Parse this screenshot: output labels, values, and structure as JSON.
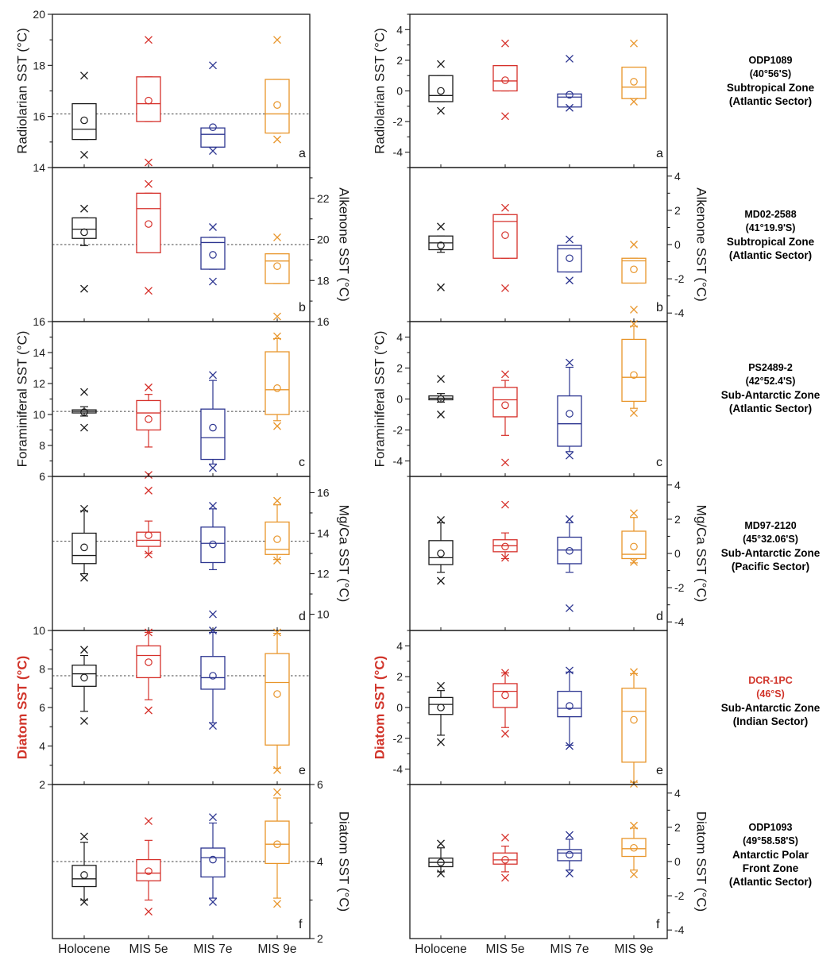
{
  "colors": {
    "axis": "#1a1a1a",
    "holocene": "#1a1a1a",
    "mis5e": "#d6312b",
    "mis7e": "#2c3590",
    "mis9e": "#e8952a",
    "red_label": "#d1342a",
    "ref_line": "#444444"
  },
  "x_categories": [
    "Holocene",
    "MIS 5e",
    "MIS 7e",
    "MIS 9e"
  ],
  "sites": [
    {
      "name": "ODP1089",
      "coord": "(40°56'S)",
      "zone": [
        "Subtropical Zone",
        "(Atlantic Sector)"
      ],
      "highlight": false
    },
    {
      "name": "MD02-2588",
      "coord": "(41°19.9'S)",
      "zone": [
        "Subtropical Zone",
        "(Atlantic Sector)"
      ],
      "highlight": false
    },
    {
      "name": "PS2489-2",
      "coord": "(42°52.4'S)",
      "zone": [
        "Sub-Antarctic Zone",
        "(Atlantic Sector)"
      ],
      "highlight": false
    },
    {
      "name": "MD97-2120",
      "coord": "(45°32.06'S)",
      "zone": [
        "Sub-Antarctic Zone",
        "(Pacific Sector)"
      ],
      "highlight": false
    },
    {
      "name": "DCR-1PC",
      "coord": "(46°S)",
      "zone": [
        "Sub-Antarctic Zone",
        "(Indian Sector)"
      ],
      "highlight": true
    },
    {
      "name": "ODP1093",
      "coord": "(49°58.58'S)",
      "zone": [
        "Antarctic Polar",
        "Front Zone",
        "(Atlantic Sector)"
      ],
      "highlight": false
    }
  ],
  "chart_data": [
    {
      "type": "box",
      "panel": "a",
      "side": "left",
      "ylabel": "Radiolarian SST (°C)",
      "ylabel_red": false,
      "axis": "left",
      "ylim": [
        14,
        20
      ],
      "ticks": [
        14,
        16,
        18,
        20
      ],
      "minor_step": 1,
      "ref_line": 16.1,
      "categories": [
        "Holocene",
        "MIS 5e",
        "MIS 7e",
        "MIS 9e"
      ],
      "boxes": [
        {
          "q1": 15.1,
          "median": 15.5,
          "q3": 16.5,
          "lower_whisker": 15.1,
          "upper_whisker": 16.5,
          "mean": 15.85,
          "min": 14.5,
          "max": 17.6
        },
        {
          "q1": 15.8,
          "median": 16.5,
          "q3": 17.55,
          "lower_whisker": 15.8,
          "upper_whisker": 17.55,
          "mean": 16.62,
          "min": 14.2,
          "max": 19.0
        },
        {
          "q1": 14.8,
          "median": 15.3,
          "q3": 15.55,
          "lower_whisker": 14.8,
          "upper_whisker": 15.55,
          "mean": 15.58,
          "min": 14.65,
          "max": 18.0
        },
        {
          "q1": 15.35,
          "median": 16.1,
          "q3": 17.45,
          "lower_whisker": 15.35,
          "upper_whisker": 17.45,
          "mean": 16.45,
          "min": 15.1,
          "max": 19.0
        }
      ]
    },
    {
      "type": "box",
      "panel": "b",
      "side": "left",
      "ylabel": "Alkenone SST (°C)",
      "ylabel_red": false,
      "axis": "right",
      "ylim": [
        16,
        23.5
      ],
      "ticks": [
        16,
        18,
        20,
        22
      ],
      "minor_step": 1,
      "ref_line": 19.75,
      "categories": [
        "Holocene",
        "MIS 5e",
        "MIS 7e",
        "MIS 9e"
      ],
      "boxes": [
        {
          "q1": 20.05,
          "median": 20.5,
          "q3": 21.05,
          "lower_whisker": 19.7,
          "upper_whisker": 21.05,
          "mean": 20.35,
          "min": 17.6,
          "max": 21.5
        },
        {
          "q1": 19.35,
          "median": 21.5,
          "q3": 22.25,
          "lower_whisker": 19.35,
          "upper_whisker": 22.25,
          "mean": 20.75,
          "min": 17.5,
          "max": 22.7
        },
        {
          "q1": 18.55,
          "median": 19.85,
          "q3": 20.1,
          "lower_whisker": 18.55,
          "upper_whisker": 20.1,
          "mean": 19.25,
          "min": 17.95,
          "max": 20.6
        },
        {
          "q1": 17.85,
          "median": 18.95,
          "q3": 19.3,
          "lower_whisker": 17.85,
          "upper_whisker": 19.3,
          "mean": 18.7,
          "min": 16.25,
          "max": 20.1
        }
      ]
    },
    {
      "type": "box",
      "panel": "c",
      "side": "left",
      "ylabel": "Foraminiferal SST (°C)",
      "ylabel_red": false,
      "axis": "left",
      "ylim": [
        6,
        16
      ],
      "ticks": [
        6,
        8,
        10,
        12,
        14,
        16
      ],
      "minor_step": 1,
      "ref_line": 10.2,
      "categories": [
        "Holocene",
        "MIS 5e",
        "MIS 7e",
        "MIS 9e"
      ],
      "boxes": [
        {
          "q1": 10.1,
          "median": 10.2,
          "q3": 10.3,
          "lower_whisker": 9.9,
          "upper_whisker": 10.5,
          "mean": 10.15,
          "min": 9.15,
          "max": 11.45
        },
        {
          "q1": 9.0,
          "median": 10.1,
          "q3": 10.9,
          "lower_whisker": 7.9,
          "upper_whisker": 11.3,
          "mean": 9.7,
          "min": 6.1,
          "max": 11.75
        },
        {
          "q1": 7.1,
          "median": 8.5,
          "q3": 10.35,
          "lower_whisker": 6.8,
          "upper_whisker": 12.2,
          "mean": 9.15,
          "min": 6.55,
          "max": 12.55
        },
        {
          "q1": 10.0,
          "median": 11.6,
          "q3": 14.05,
          "lower_whisker": 9.6,
          "upper_whisker": 14.9,
          "mean": 11.7,
          "min": 9.25,
          "max": 15.05
        }
      ]
    },
    {
      "type": "box",
      "panel": "d",
      "side": "left",
      "ylabel": "Mg/Ca SST (°C)",
      "ylabel_red": false,
      "axis": "right",
      "ylim": [
        9.2,
        16.8
      ],
      "ticks": [
        10,
        12,
        14,
        16
      ],
      "minor_step": 1,
      "ref_line": 13.6,
      "categories": [
        "Holocene",
        "MIS 5e",
        "MIS 7e",
        "MIS 9e"
      ],
      "boxes": [
        {
          "q1": 12.5,
          "median": 12.9,
          "q3": 14.0,
          "lower_whisker": 12.0,
          "upper_whisker": 15.1,
          "mean": 13.3,
          "min": 11.8,
          "max": 15.2
        },
        {
          "q1": 13.35,
          "median": 13.65,
          "q3": 14.05,
          "lower_whisker": 13.0,
          "upper_whisker": 14.6,
          "mean": 13.9,
          "min": 12.95,
          "max": 16.1
        },
        {
          "q1": 12.55,
          "median": 13.5,
          "q3": 14.3,
          "lower_whisker": 12.2,
          "upper_whisker": 15.2,
          "mean": 13.45,
          "min": 10.0,
          "max": 15.35
        },
        {
          "q1": 12.95,
          "median": 13.2,
          "q3": 14.55,
          "lower_whisker": 12.7,
          "upper_whisker": 15.4,
          "mean": 13.7,
          "min": 12.65,
          "max": 15.6
        }
      ]
    },
    {
      "type": "box",
      "panel": "e",
      "side": "left",
      "ylabel": "Diatom SST (°C)",
      "ylabel_red": true,
      "axis": "left",
      "ylim": [
        2,
        10
      ],
      "ticks": [
        2,
        4,
        6,
        8,
        10
      ],
      "minor_step": 1,
      "ref_line": 7.65,
      "categories": [
        "Holocene",
        "MIS 5e",
        "MIS 7e",
        "MIS 9e"
      ],
      "boxes": [
        {
          "q1": 7.1,
          "median": 7.75,
          "q3": 8.2,
          "lower_whisker": 5.8,
          "upper_whisker": 8.7,
          "mean": 7.55,
          "min": 5.3,
          "max": 9.0
        },
        {
          "q1": 7.55,
          "median": 8.7,
          "q3": 9.2,
          "lower_whisker": 6.4,
          "upper_whisker": 9.9,
          "mean": 8.35,
          "min": 5.85,
          "max": 9.9
        },
        {
          "q1": 6.95,
          "median": 7.55,
          "q3": 8.65,
          "lower_whisker": 5.2,
          "upper_whisker": 9.9,
          "mean": 7.65,
          "min": 5.05,
          "max": 10.0
        },
        {
          "q1": 4.05,
          "median": 7.3,
          "q3": 8.8,
          "lower_whisker": 2.85,
          "upper_whisker": 9.85,
          "mean": 6.7,
          "min": 2.75,
          "max": 9.9
        }
      ]
    },
    {
      "type": "box",
      "panel": "f",
      "side": "left",
      "ylabel": "Diatom SST (°C)",
      "ylabel_red": false,
      "axis": "right",
      "ylim": [
        2,
        6
      ],
      "ticks": [
        2,
        4,
        6
      ],
      "minor_step": 1,
      "ref_line": 4.0,
      "categories": [
        "Holocene",
        "MIS 5e",
        "MIS 7e",
        "MIS 9e"
      ],
      "boxes": [
        {
          "q1": 3.35,
          "median": 3.55,
          "q3": 3.9,
          "lower_whisker": 3.0,
          "upper_whisker": 4.5,
          "mean": 3.65,
          "min": 2.95,
          "max": 4.65
        },
        {
          "q1": 3.5,
          "median": 3.7,
          "q3": 4.05,
          "lower_whisker": 3.0,
          "upper_whisker": 4.55,
          "mean": 3.75,
          "min": 2.7,
          "max": 5.05
        },
        {
          "q1": 3.6,
          "median": 4.1,
          "q3": 4.35,
          "lower_whisker": 3.05,
          "upper_whisker": 5.0,
          "mean": 4.05,
          "min": 2.95,
          "max": 5.15
        },
        {
          "q1": 3.95,
          "median": 4.45,
          "q3": 5.05,
          "lower_whisker": 3.05,
          "upper_whisker": 5.65,
          "mean": 4.45,
          "min": 2.9,
          "max": 5.8
        }
      ]
    },
    {
      "type": "box",
      "panel": "a",
      "side": "right",
      "ylabel": "Radiolarian SST (°C)",
      "ylabel_red": false,
      "axis": "left",
      "ylim": [
        -5,
        5
      ],
      "ticks": [
        -4,
        -2,
        0,
        2,
        4
      ],
      "minor_step": 1,
      "ref_line": null,
      "categories": [
        "Holocene",
        "MIS 5e",
        "MIS 7e",
        "MIS 9e"
      ],
      "boxes": [
        {
          "q1": -0.7,
          "median": -0.3,
          "q3": 1.0,
          "lower_whisker": -0.7,
          "upper_whisker": 1.0,
          "mean": 0.0,
          "min": -1.3,
          "max": 1.75
        },
        {
          "q1": 0.0,
          "median": 0.65,
          "q3": 1.65,
          "lower_whisker": 0.0,
          "upper_whisker": 1.65,
          "mean": 0.7,
          "min": -1.65,
          "max": 3.1
        },
        {
          "q1": -1.05,
          "median": -0.4,
          "q3": -0.2,
          "lower_whisker": -1.05,
          "upper_whisker": -0.2,
          "mean": -0.25,
          "min": -1.1,
          "max": 2.1
        },
        {
          "q1": -0.5,
          "median": 0.25,
          "q3": 1.55,
          "lower_whisker": -0.5,
          "upper_whisker": 1.55,
          "mean": 0.6,
          "min": -0.7,
          "max": 3.1
        }
      ]
    },
    {
      "type": "box",
      "panel": "b",
      "side": "right",
      "ylabel": "Alkenone SST (°C)",
      "ylabel_red": false,
      "axis": "right",
      "ylim": [
        -4.5,
        4.5
      ],
      "ticks": [
        -4,
        -2,
        0,
        2,
        4
      ],
      "minor_step": 1,
      "ref_line": null,
      "categories": [
        "Holocene",
        "MIS 5e",
        "MIS 7e",
        "MIS 9e"
      ],
      "boxes": [
        {
          "q1": -0.3,
          "median": 0.1,
          "q3": 0.5,
          "lower_whisker": -0.45,
          "upper_whisker": 0.5,
          "mean": -0.05,
          "min": -2.5,
          "max": 1.05
        },
        {
          "q1": -0.8,
          "median": 1.35,
          "q3": 1.75,
          "lower_whisker": -0.8,
          "upper_whisker": 1.75,
          "mean": 0.55,
          "min": -2.55,
          "max": 2.15
        },
        {
          "q1": -1.6,
          "median": -0.25,
          "q3": -0.05,
          "lower_whisker": -1.6,
          "upper_whisker": -0.05,
          "mean": -0.8,
          "min": -2.1,
          "max": 0.3
        },
        {
          "q1": -2.25,
          "median": -0.95,
          "q3": -0.8,
          "lower_whisker": -2.25,
          "upper_whisker": -0.8,
          "mean": -1.45,
          "min": -3.8,
          "max": 0.0
        }
      ]
    },
    {
      "type": "box",
      "panel": "c",
      "side": "right",
      "ylabel": "Foraminiferal SST (°C)",
      "ylabel_red": false,
      "axis": "left",
      "ylim": [
        -5,
        5
      ],
      "ticks": [
        -4,
        -2,
        0,
        2,
        4
      ],
      "minor_step": 1,
      "ref_line": null,
      "categories": [
        "Holocene",
        "MIS 5e",
        "MIS 7e",
        "MIS 9e"
      ],
      "boxes": [
        {
          "q1": -0.05,
          "median": 0.05,
          "q3": 0.2,
          "lower_whisker": -0.2,
          "upper_whisker": 0.35,
          "mean": 0.0,
          "min": -1.0,
          "max": 1.3
        },
        {
          "q1": -1.15,
          "median": -0.05,
          "q3": 0.75,
          "lower_whisker": -2.35,
          "upper_whisker": 1.2,
          "mean": -0.4,
          "min": -4.1,
          "max": 1.6
        },
        {
          "q1": -3.05,
          "median": -1.6,
          "q3": 0.2,
          "lower_whisker": -3.4,
          "upper_whisker": 2.05,
          "mean": -0.95,
          "min": -3.65,
          "max": 2.35
        },
        {
          "q1": -0.15,
          "median": 1.4,
          "q3": 3.85,
          "lower_whisker": -0.6,
          "upper_whisker": 4.7,
          "mean": 1.55,
          "min": -0.9,
          "max": 4.85
        }
      ]
    },
    {
      "type": "box",
      "panel": "d",
      "side": "right",
      "ylabel": "Mg/Ca SST (°C)",
      "ylabel_red": false,
      "axis": "right",
      "ylim": [
        -4.5,
        4.5
      ],
      "ticks": [
        -4,
        -2,
        0,
        2,
        4
      ],
      "minor_step": 1,
      "ref_line": null,
      "categories": [
        "Holocene",
        "MIS 5e",
        "MIS 7e",
        "MIS 9e"
      ],
      "boxes": [
        {
          "q1": -0.65,
          "median": -0.25,
          "q3": 0.75,
          "lower_whisker": -1.1,
          "upper_whisker": 1.8,
          "mean": 0.0,
          "min": -1.6,
          "max": 1.95
        },
        {
          "q1": 0.1,
          "median": 0.45,
          "q3": 0.8,
          "lower_whisker": -0.3,
          "upper_whisker": 1.2,
          "mean": 0.4,
          "min": -0.25,
          "max": 2.85
        },
        {
          "q1": -0.6,
          "median": 0.2,
          "q3": 0.95,
          "lower_whisker": -1.1,
          "upper_whisker": 1.8,
          "mean": 0.15,
          "min": -3.2,
          "max": 2.0
        },
        {
          "q1": -0.3,
          "median": -0.05,
          "q3": 1.3,
          "lower_whisker": -0.55,
          "upper_whisker": 2.1,
          "mean": 0.4,
          "min": -0.5,
          "max": 2.35
        }
      ]
    },
    {
      "type": "box",
      "panel": "e",
      "side": "right",
      "ylabel": "Diatom SST (°C)",
      "ylabel_red": true,
      "axis": "left",
      "ylim": [
        -5,
        5
      ],
      "ticks": [
        -4,
        -2,
        0,
        2,
        4
      ],
      "minor_step": 1,
      "ref_line": null,
      "categories": [
        "Holocene",
        "MIS 5e",
        "MIS 7e",
        "MIS 9e"
      ],
      "boxes": [
        {
          "q1": -0.45,
          "median": 0.2,
          "q3": 0.65,
          "lower_whisker": -1.8,
          "upper_whisker": 1.1,
          "mean": 0.0,
          "min": -2.25,
          "max": 1.4
        },
        {
          "q1": 0.0,
          "median": 1.05,
          "q3": 1.55,
          "lower_whisker": -1.3,
          "upper_whisker": 2.25,
          "mean": 0.8,
          "min": -1.7,
          "max": 2.25
        },
        {
          "q1": -0.6,
          "median": -0.05,
          "q3": 1.05,
          "lower_whisker": -2.45,
          "upper_whisker": 2.3,
          "mean": 0.1,
          "min": -2.5,
          "max": 2.4
        },
        {
          "q1": -3.55,
          "median": -0.25,
          "q3": 1.25,
          "lower_whisker": -4.85,
          "upper_whisker": 2.2,
          "mean": -0.8,
          "min": -4.95,
          "max": 2.3
        }
      ]
    },
    {
      "type": "box",
      "panel": "f",
      "side": "right",
      "ylabel": "Diatom SST (°C)",
      "ylabel_red": false,
      "axis": "right",
      "ylim": [
        -4.5,
        4.5
      ],
      "ticks": [
        -4,
        -2,
        0,
        2,
        4
      ],
      "minor_step": 1,
      "ref_line": null,
      "categories": [
        "Holocene",
        "MIS 5e",
        "MIS 7e",
        "MIS 9e"
      ],
      "boxes": [
        {
          "q1": -0.3,
          "median": -0.05,
          "q3": 0.2,
          "lower_whisker": -0.6,
          "upper_whisker": 0.8,
          "mean": -0.05,
          "min": -0.7,
          "max": 1.05
        },
        {
          "q1": -0.15,
          "median": 0.1,
          "q3": 0.5,
          "lower_whisker": -0.6,
          "upper_whisker": 0.9,
          "mean": 0.1,
          "min": -0.95,
          "max": 1.4
        },
        {
          "q1": 0.05,
          "median": 0.5,
          "q3": 0.7,
          "lower_whisker": -0.5,
          "upper_whisker": 1.3,
          "mean": 0.4,
          "min": -0.7,
          "max": 1.55
        },
        {
          "q1": 0.3,
          "median": 0.75,
          "q3": 1.35,
          "lower_whisker": -0.5,
          "upper_whisker": 1.95,
          "mean": 0.8,
          "min": -0.75,
          "max": 2.1
        }
      ]
    }
  ]
}
